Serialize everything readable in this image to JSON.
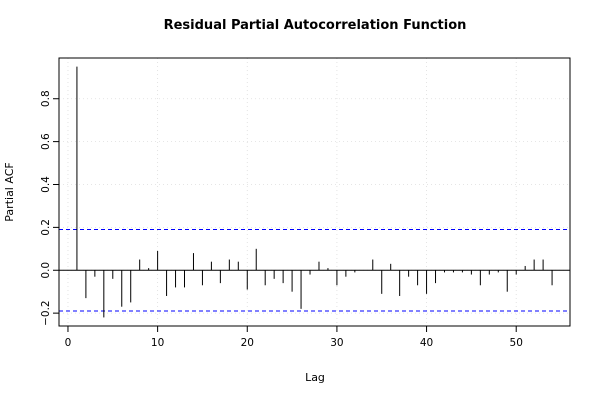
{
  "chart_data": {
    "type": "bar",
    "title": "Residual Partial Autocorrelation Function",
    "xlabel": "Lag",
    "ylabel": "Partial ACF",
    "xlim": [
      -1,
      56
    ],
    "ylim": [
      -0.26,
      0.99
    ],
    "x_ticks": [
      0,
      10,
      20,
      30,
      40,
      50
    ],
    "x_tick_labels": [
      "0",
      "10",
      "20",
      "30",
      "40",
      "50"
    ],
    "y_ticks": [
      -0.2,
      0.0,
      0.2,
      0.4,
      0.6,
      0.8
    ],
    "y_tick_labels": [
      "−0.2",
      "0.0",
      "0.2",
      "0.4",
      "0.6",
      "0.8"
    ],
    "grid": true,
    "confidence_bounds": [
      0.19,
      -0.19
    ],
    "colors": {
      "spike": "#000000",
      "bounds": "#0000ff",
      "grid": "#dddddd",
      "frame": "#000000"
    },
    "x": [
      1,
      2,
      3,
      4,
      5,
      6,
      7,
      8,
      9,
      10,
      11,
      12,
      13,
      14,
      15,
      16,
      17,
      18,
      19,
      20,
      21,
      22,
      23,
      24,
      25,
      26,
      27,
      28,
      29,
      30,
      31,
      32,
      33,
      34,
      35,
      36,
      37,
      38,
      39,
      40,
      41,
      42,
      43,
      44,
      45,
      46,
      47,
      48,
      49,
      50,
      51,
      52,
      53,
      54
    ],
    "values": [
      0.95,
      -0.13,
      -0.03,
      -0.22,
      -0.04,
      -0.17,
      -0.15,
      0.05,
      0.01,
      0.09,
      -0.12,
      -0.08,
      -0.08,
      0.08,
      -0.07,
      0.04,
      -0.06,
      0.05,
      0.04,
      -0.09,
      0.1,
      -0.07,
      -0.04,
      -0.06,
      -0.1,
      -0.18,
      -0.02,
      0.04,
      0.01,
      -0.07,
      -0.03,
      -0.01,
      0.0,
      0.05,
      -0.11,
      0.03,
      -0.12,
      -0.03,
      -0.07,
      -0.11,
      -0.06,
      -0.01,
      -0.01,
      -0.01,
      -0.02,
      -0.07,
      -0.02,
      -0.01,
      -0.1,
      -0.02,
      0.02,
      0.05,
      0.05,
      -0.07
    ]
  }
}
